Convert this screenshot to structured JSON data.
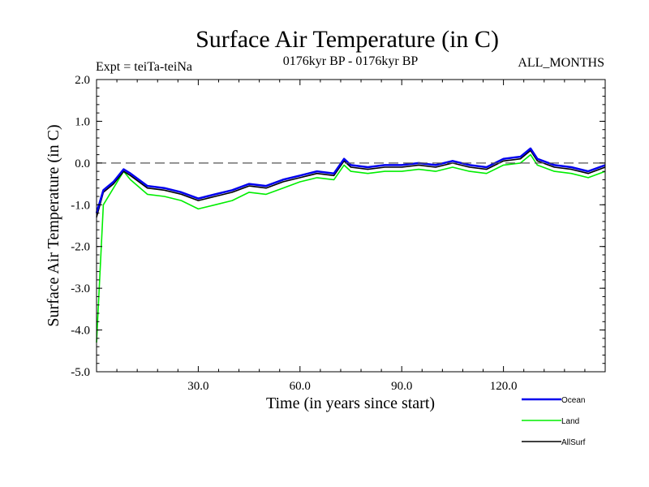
{
  "chart_data": {
    "type": "line",
    "title": "Surface Air Temperature (in C)",
    "subtitle_left": "Expt = teiTa-teiNa",
    "subtitle_center": "0176kyr BP - 0176kyr BP",
    "subtitle_right": "ALL_MONTHS",
    "xlabel": "Time (in years since start)",
    "ylabel": "Surface Air Temperature (in C)",
    "xlim": [
      0,
      150
    ],
    "ylim": [
      -5.0,
      2.0
    ],
    "xticks": [
      30,
      60,
      90,
      120
    ],
    "xtick_labels": [
      "30.0",
      "60.0",
      "90.0",
      "120.0"
    ],
    "yticks": [
      2.0,
      1.0,
      0.0,
      -1.0,
      -2.0,
      -3.0,
      -4.0,
      -5.0
    ],
    "ytick_labels": [
      "2.0",
      "1.0",
      "0.0",
      "-1.0",
      "-2.0",
      "-3.0",
      "-4.0",
      "-5.0"
    ],
    "reference_line": {
      "y": 0.0,
      "style": "dashed"
    },
    "series": [
      {
        "name": "AllSurf",
        "color": "#000000",
        "x": [
          0,
          2,
          5,
          8,
          10,
          15,
          20,
          25,
          30,
          35,
          40,
          45,
          50,
          55,
          60,
          65,
          70,
          73,
          75,
          80,
          85,
          90,
          95,
          100,
          105,
          110,
          115,
          120,
          125,
          128,
          130,
          135,
          140,
          145,
          150
        ],
        "values": [
          -1.3,
          -0.7,
          -0.5,
          -0.2,
          -0.3,
          -0.6,
          -0.65,
          -0.75,
          -0.9,
          -0.8,
          -0.7,
          -0.55,
          -0.6,
          -0.45,
          -0.35,
          -0.25,
          -0.3,
          0.05,
          -0.1,
          -0.15,
          -0.1,
          -0.1,
          -0.05,
          -0.1,
          0.0,
          -0.1,
          -0.15,
          0.05,
          0.1,
          0.3,
          0.05,
          -0.1,
          -0.15,
          -0.25,
          -0.1
        ]
      },
      {
        "name": "Land",
        "color": "#00ee00",
        "x": [
          0,
          2,
          5,
          8,
          10,
          15,
          20,
          25,
          30,
          35,
          40,
          45,
          50,
          55,
          60,
          65,
          70,
          73,
          75,
          80,
          85,
          90,
          95,
          100,
          105,
          110,
          115,
          120,
          125,
          128,
          130,
          135,
          140,
          145,
          150
        ],
        "values": [
          -4.3,
          -1.0,
          -0.6,
          -0.2,
          -0.4,
          -0.75,
          -0.8,
          -0.9,
          -1.1,
          -1.0,
          -0.9,
          -0.7,
          -0.75,
          -0.6,
          -0.45,
          -0.35,
          -0.4,
          -0.05,
          -0.2,
          -0.25,
          -0.2,
          -0.2,
          -0.15,
          -0.2,
          -0.1,
          -0.2,
          -0.25,
          -0.05,
          0.0,
          0.2,
          -0.05,
          -0.2,
          -0.25,
          -0.35,
          -0.2
        ]
      },
      {
        "name": "Ocean",
        "color": "#0000ee",
        "x": [
          0,
          2,
          5,
          8,
          10,
          15,
          20,
          25,
          30,
          35,
          40,
          45,
          50,
          55,
          60,
          65,
          70,
          73,
          75,
          80,
          85,
          90,
          95,
          100,
          105,
          110,
          115,
          120,
          125,
          128,
          130,
          135,
          140,
          145,
          150
        ],
        "values": [
          -1.2,
          -0.65,
          -0.45,
          -0.15,
          -0.25,
          -0.55,
          -0.6,
          -0.7,
          -0.85,
          -0.75,
          -0.65,
          -0.5,
          -0.55,
          -0.4,
          -0.3,
          -0.2,
          -0.25,
          0.1,
          -0.05,
          -0.1,
          -0.05,
          -0.05,
          0.0,
          -0.05,
          0.05,
          -0.05,
          -0.1,
          0.1,
          0.15,
          0.35,
          0.1,
          -0.05,
          -0.1,
          -0.2,
          -0.05
        ]
      }
    ],
    "legend": {
      "position": "bottom-right",
      "entries": [
        "Ocean",
        "Land",
        "AllSurf"
      ]
    }
  }
}
